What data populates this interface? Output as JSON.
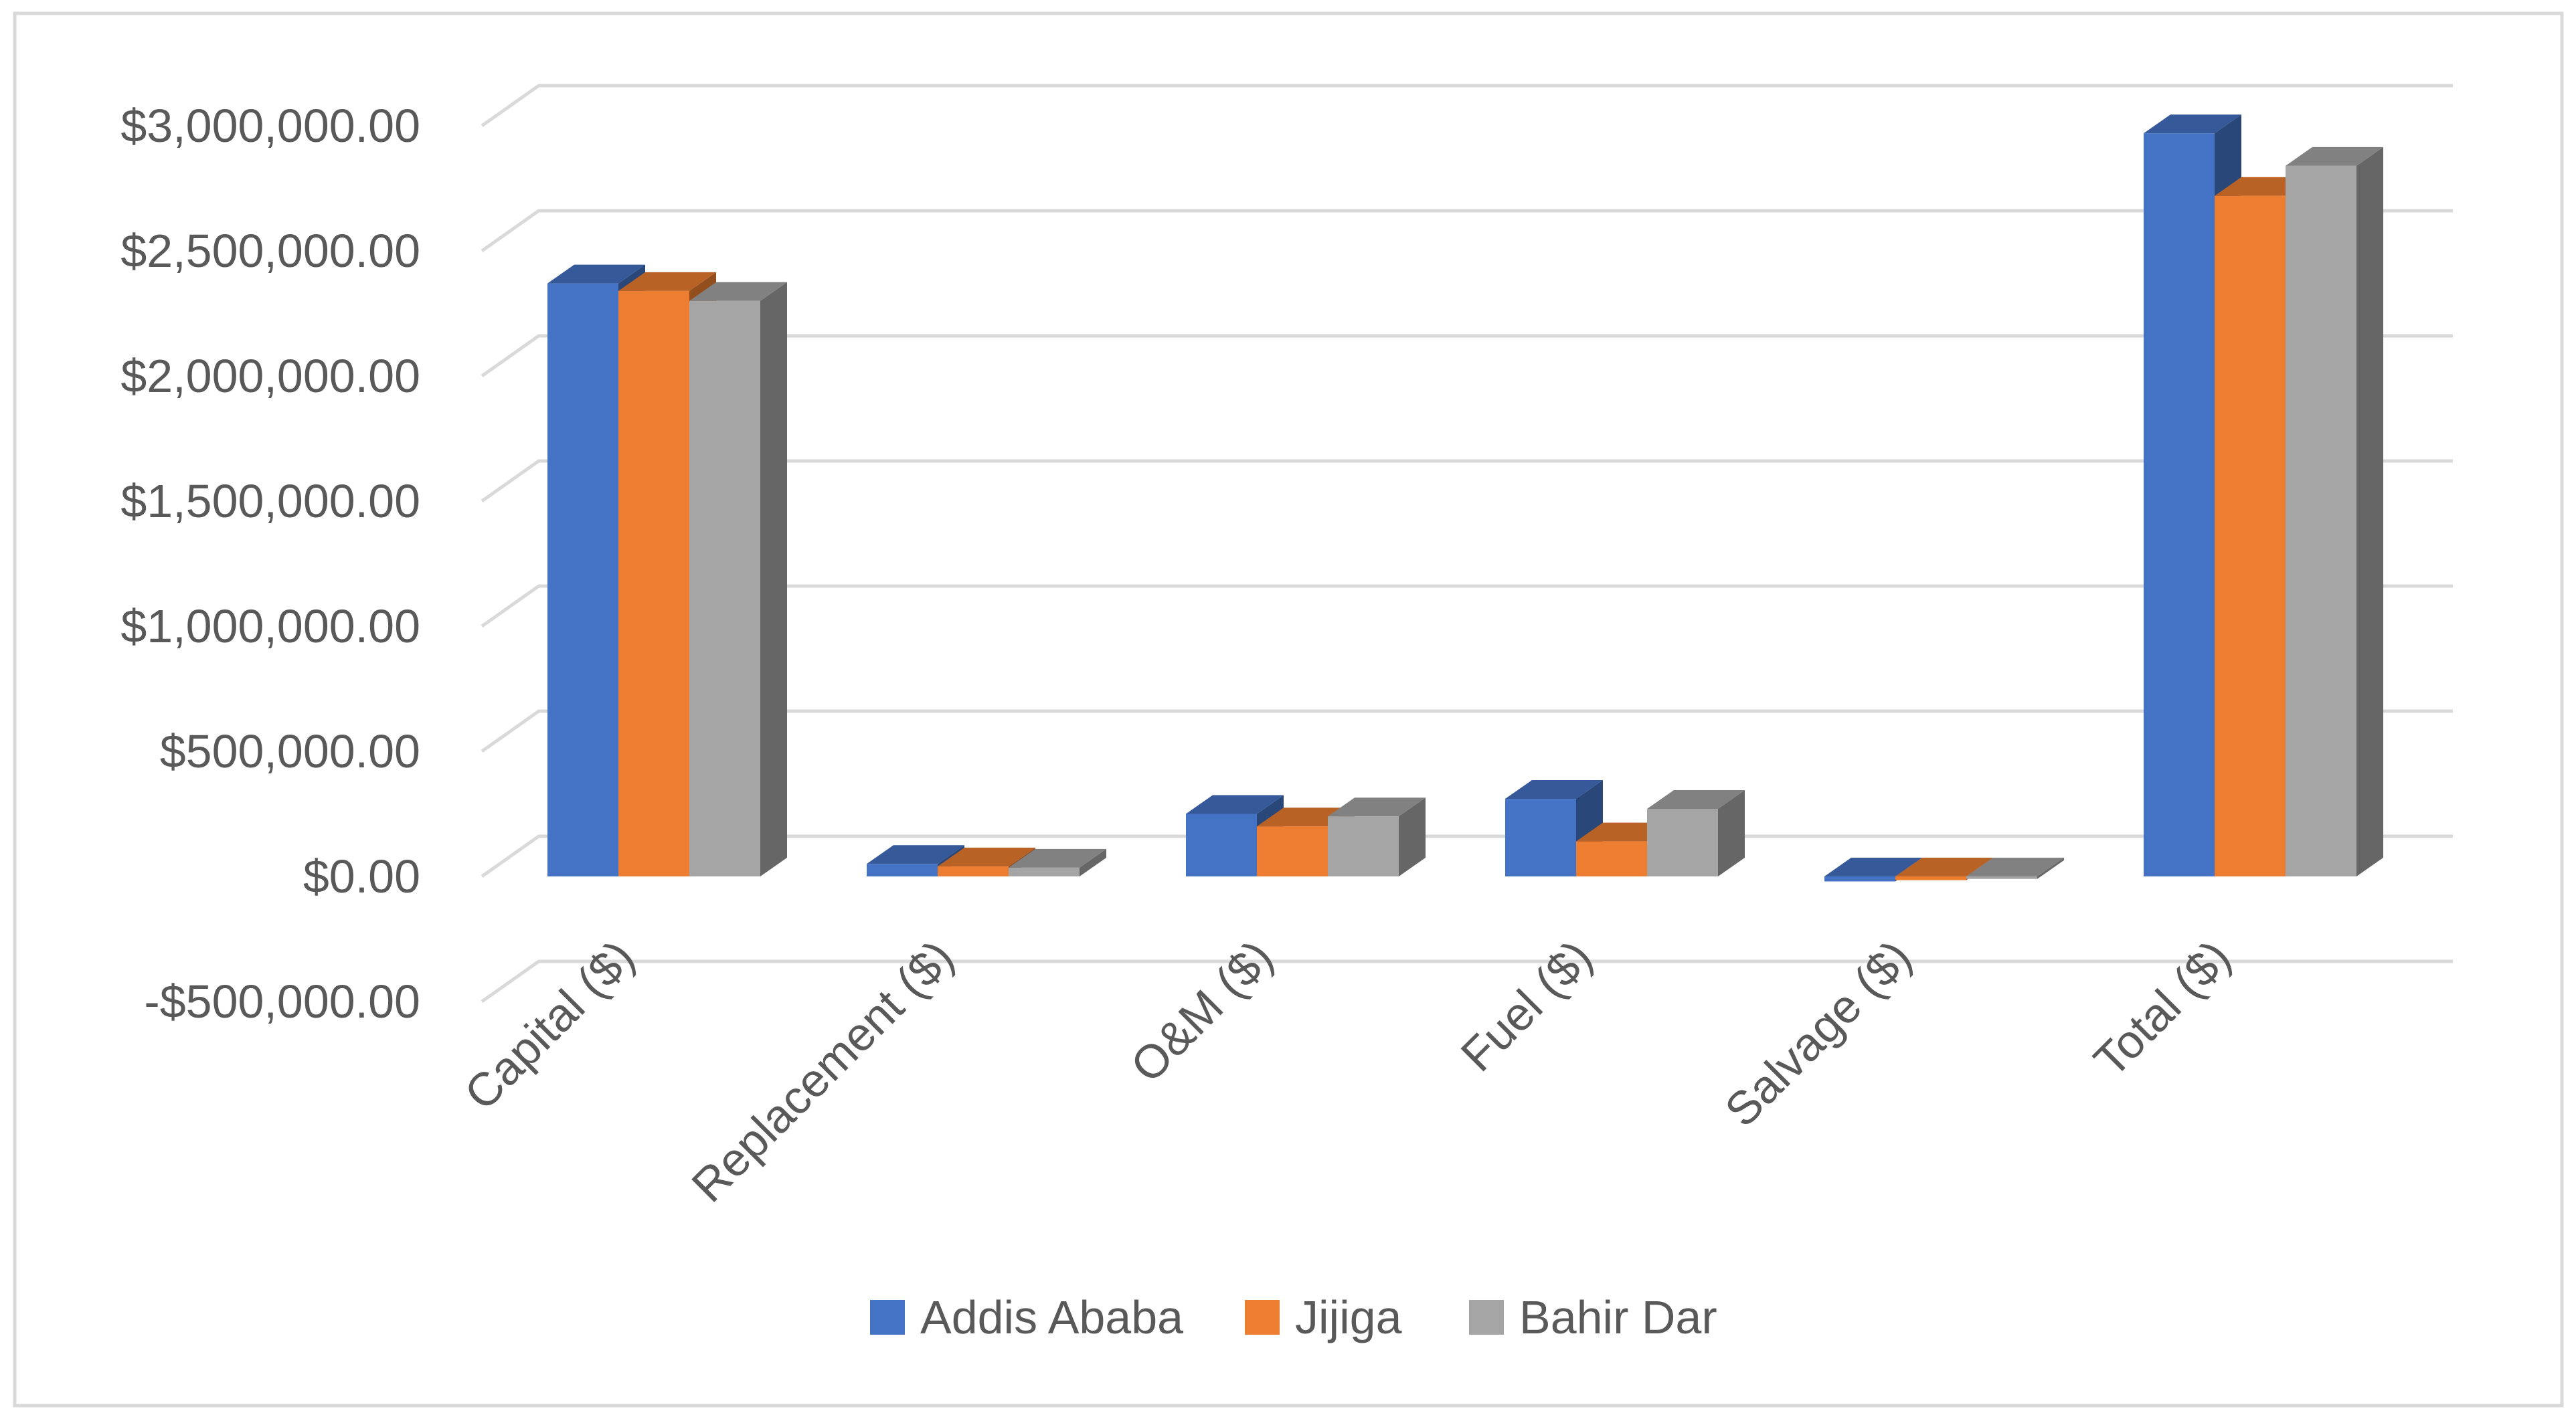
{
  "chart_data": {
    "type": "bar",
    "categories": [
      "Capital ($)",
      "Replacement ($)",
      "O&M ($)",
      "Fuel ($)",
      "Salvage ($)",
      "Total ($)"
    ],
    "series": [
      {
        "name": "Addis Ababa",
        "color": "#4472C4",
        "values": [
          2370000,
          50000,
          250000,
          310000,
          -20000,
          2970000
        ]
      },
      {
        "name": "Jijiga",
        "color": "#ED7D31",
        "values": [
          2340000,
          40000,
          200000,
          140000,
          -15000,
          2720000
        ]
      },
      {
        "name": "Bahir Dar",
        "color": "#A5A5A5",
        "values": [
          2300000,
          35000,
          240000,
          270000,
          -10000,
          2840000
        ]
      }
    ],
    "ytick_labels": [
      "-$500,000.00",
      "$0.00",
      "$500,000.00",
      "$1,000,000.00",
      "$1,500,000.00",
      "$2,000,000.00",
      "$2,500,000.00",
      "$3,000,000.00"
    ],
    "ytick_values": [
      -500000,
      0,
      500000,
      1000000,
      1500000,
      2000000,
      2500000,
      3000000
    ],
    "ylim": [
      -500000,
      3000000
    ],
    "grid": true,
    "style": "3d-clustered-column",
    "legend_position": "bottom",
    "title": "",
    "xlabel": "",
    "ylabel": ""
  }
}
